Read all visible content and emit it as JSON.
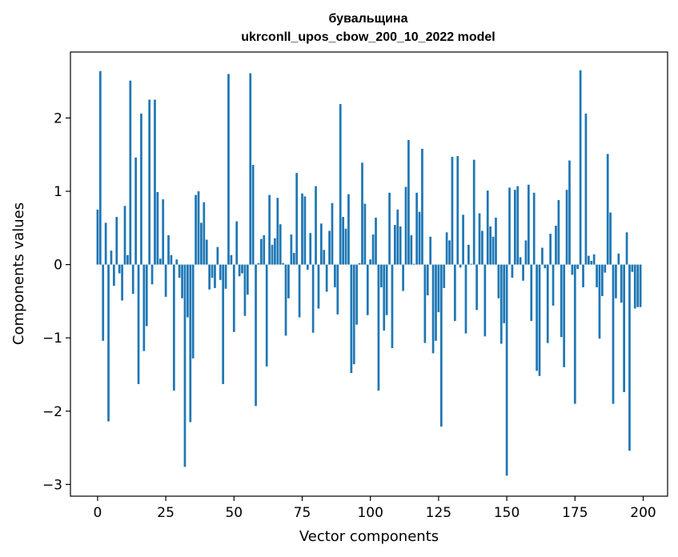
{
  "chart_data": {
    "type": "bar",
    "title_line1": "бувальщина",
    "title_line2": "ukrconll_upos_cbow_200_10_2022 model",
    "xlabel": "Vector components",
    "ylabel": "Components values",
    "xlim": [
      -9.95,
      208.95
    ],
    "ylim": [
      -3.16,
      2.9
    ],
    "xticks": [
      0,
      25,
      50,
      75,
      100,
      125,
      150,
      175,
      200
    ],
    "xtick_labels": [
      "0",
      "25",
      "50",
      "75",
      "100",
      "125",
      "150",
      "175",
      "200"
    ],
    "yticks": [
      -3,
      -2,
      -1,
      0,
      1,
      2
    ],
    "ytick_labels": [
      "−3",
      "−2",
      "−1",
      "0",
      "1",
      "2"
    ],
    "color": "#1f77b4",
    "grid": false,
    "x": [
      0,
      1,
      2,
      3,
      4,
      5,
      6,
      7,
      8,
      9,
      10,
      11,
      12,
      13,
      14,
      15,
      16,
      17,
      18,
      19,
      20,
      21,
      22,
      23,
      24,
      25,
      26,
      27,
      28,
      29,
      30,
      31,
      32,
      33,
      34,
      35,
      36,
      37,
      38,
      39,
      40,
      41,
      42,
      43,
      44,
      45,
      46,
      47,
      48,
      49,
      50,
      51,
      52,
      53,
      54,
      55,
      56,
      57,
      58,
      59,
      60,
      61,
      62,
      63,
      64,
      65,
      66,
      67,
      68,
      69,
      70,
      71,
      72,
      73,
      74,
      75,
      76,
      77,
      78,
      79,
      80,
      81,
      82,
      83,
      84,
      85,
      86,
      87,
      88,
      89,
      90,
      91,
      92,
      93,
      94,
      95,
      96,
      97,
      98,
      99,
      100,
      101,
      102,
      103,
      104,
      105,
      106,
      107,
      108,
      109,
      110,
      111,
      112,
      113,
      114,
      115,
      116,
      117,
      118,
      119,
      120,
      121,
      122,
      123,
      124,
      125,
      126,
      127,
      128,
      129,
      130,
      131,
      132,
      133,
      134,
      135,
      136,
      137,
      138,
      139,
      140,
      141,
      142,
      143,
      144,
      145,
      146,
      147,
      148,
      149,
      150,
      151,
      152,
      153,
      154,
      155,
      156,
      157,
      158,
      159,
      160,
      161,
      162,
      163,
      164,
      165,
      166,
      167,
      168,
      169,
      170,
      171,
      172,
      173,
      174,
      175,
      176,
      177,
      178,
      179,
      180,
      181,
      182,
      183,
      184,
      185,
      186,
      187,
      188,
      189,
      190,
      191,
      192,
      193,
      194,
      195,
      196,
      197,
      198,
      199
    ],
    "values": [
      0.75,
      2.64,
      -1.04,
      0.57,
      -2.14,
      0.19,
      -0.29,
      0.65,
      -0.12,
      -0.49,
      0.8,
      0.13,
      2.51,
      -0.4,
      1.46,
      -1.63,
      2.06,
      -1.18,
      -0.84,
      2.25,
      -0.27,
      2.25,
      0.99,
      0.08,
      0.89,
      -0.44,
      0.4,
      0.13,
      -1.72,
      0.07,
      -0.18,
      -0.46,
      -2.76,
      -0.72,
      -2.15,
      -1.28,
      0.95,
      1.0,
      0.57,
      0.85,
      0.34,
      -0.34,
      -0.18,
      -0.32,
      0.24,
      -0.21,
      -1.63,
      -0.33,
      2.6,
      0.13,
      -0.92,
      0.59,
      -0.16,
      -0.12,
      -0.7,
      -0.41,
      2.61,
      1.36,
      -1.93,
      0.02,
      0.35,
      0.4,
      -1.39,
      0.95,
      0.27,
      0.36,
      0.91,
      0.55,
      0.02,
      -0.97,
      -0.46,
      0.41,
      0.16,
      1.25,
      -0.72,
      0.97,
      0.93,
      -0.07,
      0.43,
      -0.93,
      1.07,
      -0.6,
      0.56,
      0.2,
      -0.37,
      0.46,
      0.84,
      -0.31,
      -0.68,
      2.19,
      0.65,
      0.49,
      0.96,
      -1.48,
      -1.36,
      -0.82,
      0.02,
      1.39,
      0.83,
      -0.69,
      0.07,
      0.41,
      0.64,
      -1.72,
      -0.31,
      -0.9,
      -0.69,
      0.98,
      -1.14,
      0.54,
      0.75,
      0.52,
      -0.36,
      1.06,
      1.7,
      0.4,
      0.01,
      0.98,
      0.72,
      1.58,
      -1.07,
      -0.42,
      0.38,
      -1.21,
      -1.04,
      -0.65,
      -2.21,
      -0.32,
      0.44,
      0.33,
      1.47,
      -0.77,
      1.48,
      -0.04,
      0.68,
      -0.94,
      0.27,
      0.01,
      1.43,
      -0.62,
      0.7,
      0.46,
      -0.98,
      1.01,
      0.52,
      0.38,
      0.64,
      -0.46,
      -1.08,
      -0.8,
      -2.88,
      1.05,
      -0.18,
      1.02,
      1.07,
      0.1,
      -0.22,
      0.33,
      1.09,
      -0.77,
      0.98,
      -1.45,
      -1.52,
      0.23,
      -0.05,
      -1.07,
      0.42,
      -0.56,
      0.53,
      0.88,
      -0.99,
      -1.4,
      1.02,
      1.42,
      -0.14,
      -1.9,
      -0.06,
      2.65,
      -0.31,
      2.06,
      0.12,
      0.05,
      0.14,
      -0.31,
      -1.01,
      -0.43,
      -0.11,
      1.51,
      0.71,
      -1.9,
      -0.46,
      0.15,
      -0.52,
      -1.74,
      0.44,
      -2.54,
      -0.1,
      -0.6,
      -0.58,
      -0.58
    ]
  }
}
